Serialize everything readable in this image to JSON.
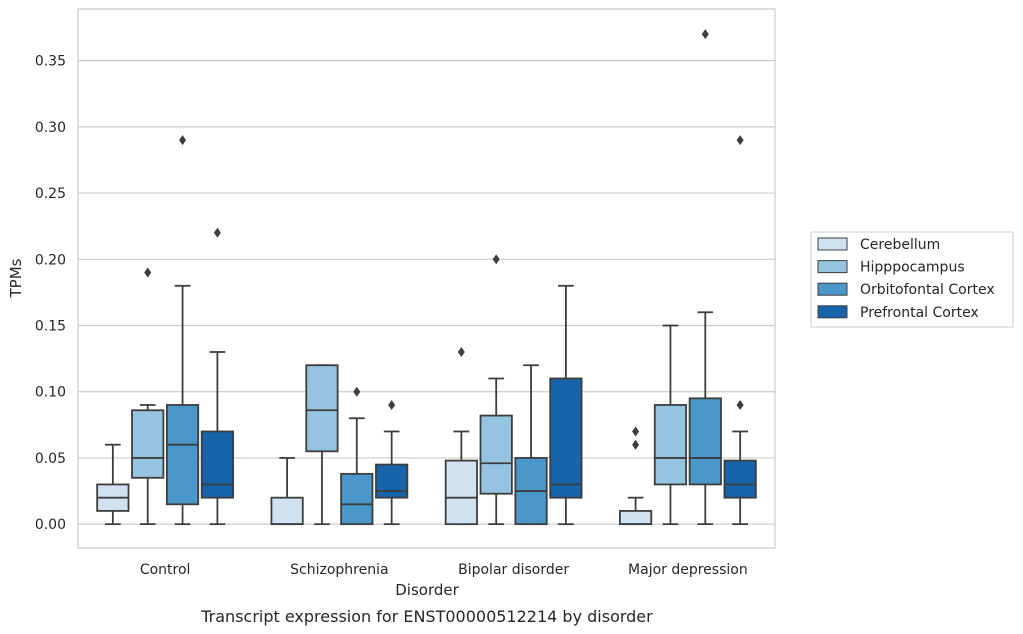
{
  "chart_data": {
    "type": "box",
    "title": "",
    "caption": "Transcript expression for ENST00000512214 by disorder",
    "xlabel": "Disorder",
    "ylabel": "TPMs",
    "ylim": [
      -0.018,
      0.389
    ],
    "yticks": [
      "0.00",
      "0.05",
      "0.10",
      "0.15",
      "0.20",
      "0.25",
      "0.30",
      "0.35"
    ],
    "grid": "horizontal",
    "legend_position": "right",
    "categories": [
      "Control",
      "Schizophrenia",
      "Bipolar disorder",
      "Major depression"
    ],
    "series": [
      {
        "name": "Cerebellum",
        "color": "#d0e1f2",
        "boxes": [
          {
            "whislo": 0.0,
            "q1": 0.01,
            "med": 0.02,
            "q3": 0.03,
            "whishi": 0.06,
            "fliers": []
          },
          {
            "whislo": 0.0,
            "q1": 0.0,
            "med": 0.0,
            "q3": 0.02,
            "whishi": 0.05,
            "fliers": []
          },
          {
            "whislo": 0.0,
            "q1": 0.0,
            "med": 0.02,
            "q3": 0.048,
            "whishi": 0.07,
            "fliers": [
              0.13
            ]
          },
          {
            "whislo": 0.0,
            "q1": 0.0,
            "med": 0.0,
            "q3": 0.01,
            "whishi": 0.02,
            "fliers": [
              0.06,
              0.07
            ]
          }
        ]
      },
      {
        "name": "Hipppocampus",
        "color": "#94c4df",
        "boxes": [
          {
            "whislo": 0.0,
            "q1": 0.035,
            "med": 0.05,
            "q3": 0.086,
            "whishi": 0.09,
            "fliers": [
              0.19
            ]
          },
          {
            "whislo": 0.0,
            "q1": 0.055,
            "med": 0.086,
            "q3": 0.12,
            "whishi": 0.12,
            "fliers": []
          },
          {
            "whislo": 0.0,
            "q1": 0.023,
            "med": 0.046,
            "q3": 0.082,
            "whishi": 0.11,
            "fliers": [
              0.2
            ]
          },
          {
            "whislo": 0.0,
            "q1": 0.03,
            "med": 0.05,
            "q3": 0.09,
            "whishi": 0.15,
            "fliers": []
          }
        ]
      },
      {
        "name": "Orbitofontal Cortex",
        "color": "#4a98c9",
        "boxes": [
          {
            "whislo": 0.0,
            "q1": 0.015,
            "med": 0.06,
            "q3": 0.09,
            "whishi": 0.18,
            "fliers": [
              0.29
            ]
          },
          {
            "whislo": 0.0,
            "q1": 0.0,
            "med": 0.015,
            "q3": 0.038,
            "whishi": 0.08,
            "fliers": [
              0.1
            ]
          },
          {
            "whislo": 0.0,
            "q1": 0.0,
            "med": 0.025,
            "q3": 0.05,
            "whishi": 0.12,
            "fliers": []
          },
          {
            "whislo": 0.0,
            "q1": 0.03,
            "med": 0.05,
            "q3": 0.095,
            "whishi": 0.16,
            "fliers": [
              0.37
            ]
          }
        ]
      },
      {
        "name": "Prefrontal Cortex",
        "color": "#1764ab",
        "boxes": [
          {
            "whislo": 0.0,
            "q1": 0.02,
            "med": 0.03,
            "q3": 0.07,
            "whishi": 0.13,
            "fliers": [
              0.22
            ]
          },
          {
            "whislo": 0.0,
            "q1": 0.02,
            "med": 0.025,
            "q3": 0.045,
            "whishi": 0.07,
            "fliers": [
              0.09
            ]
          },
          {
            "whislo": 0.0,
            "q1": 0.02,
            "med": 0.03,
            "q3": 0.11,
            "whishi": 0.18,
            "fliers": []
          },
          {
            "whislo": 0.0,
            "q1": 0.02,
            "med": 0.03,
            "q3": 0.048,
            "whishi": 0.07,
            "fliers": [
              0.09,
              0.29
            ]
          }
        ]
      }
    ]
  }
}
